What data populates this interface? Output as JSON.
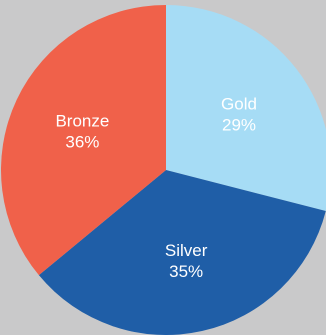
{
  "chart_data": {
    "type": "pie",
    "slices": [
      {
        "label": "Gold",
        "value": 29,
        "value_label": "29%",
        "color": "#a6dcf5"
      },
      {
        "label": "Silver",
        "value": 35,
        "value_label": "35%",
        "color": "#1f5ea7"
      },
      {
        "label": "Bronze",
        "value": 36,
        "value_label": "36%",
        "color": "#f0614a"
      }
    ],
    "legend": "none",
    "background_color": "#c9c9ca"
  }
}
